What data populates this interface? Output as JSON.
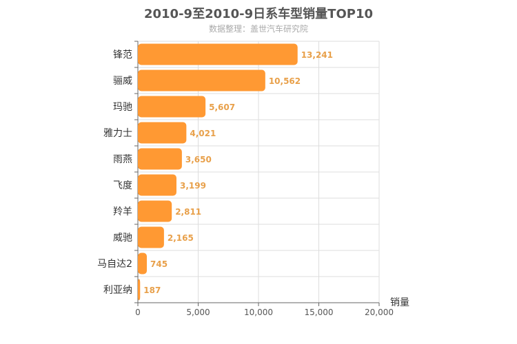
{
  "chart_data": {
    "type": "bar",
    "orientation": "horizontal",
    "title": "2010-9至2010-9日系车型销量TOP10",
    "subtitle": "数据整理：盖世汽车研究院",
    "xlabel": "销量",
    "ylabel": "",
    "categories": [
      "锋范",
      "骊威",
      "玛驰",
      "雅力士",
      "雨燕",
      "飞度",
      "羚羊",
      "威驰",
      "马自达2",
      "利亚纳"
    ],
    "values": [
      13241,
      10562,
      5607,
      4021,
      3650,
      3199,
      2811,
      2165,
      745,
      187
    ],
    "value_labels": [
      "13,241",
      "10,562",
      "5,607",
      "4,021",
      "3,650",
      "3,199",
      "2,811",
      "2,165",
      "745",
      "187"
    ],
    "xlim": [
      0,
      20000
    ],
    "xticks": [
      0,
      5000,
      10000,
      15000,
      20000
    ],
    "xtick_labels": [
      "0",
      "5,000",
      "10,000",
      "15,000",
      "20,000"
    ],
    "grid": true,
    "legend": "none",
    "colors": {
      "bar": "#ff9933",
      "value_label": "#e8a04a",
      "axis": "#666666",
      "grid": "#dddddd",
      "title": "#555555",
      "subtitle": "#aaaaaa"
    }
  }
}
